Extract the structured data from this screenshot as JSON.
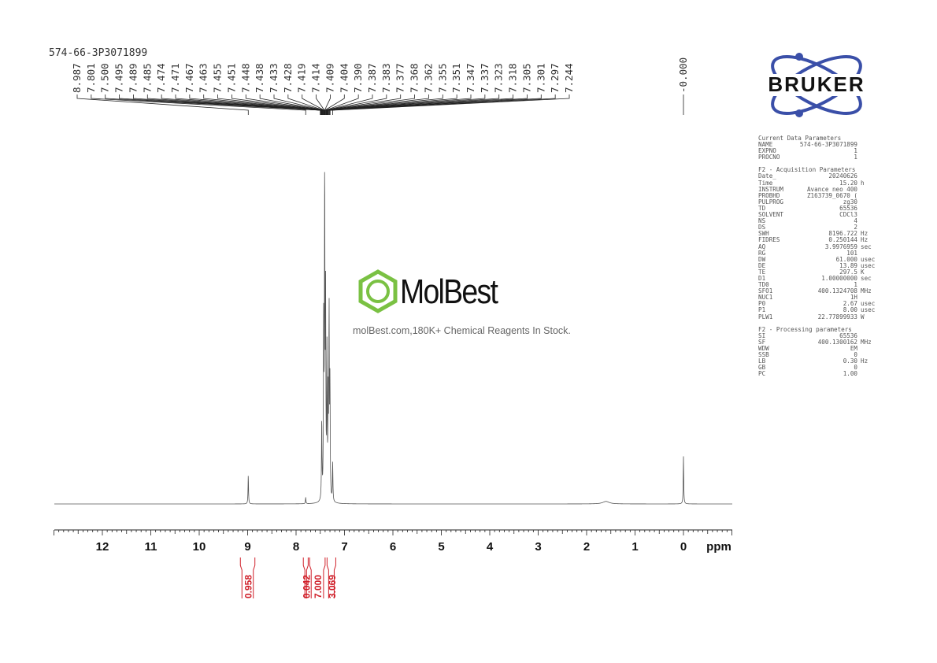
{
  "spectrum_title": "574-66-3P3071899",
  "chart_data": {
    "type": "line",
    "xlabel": "ppm",
    "xlim": [
      13,
      -1
    ],
    "x_reversed": true,
    "x_ticks": [
      12,
      11,
      10,
      9,
      8,
      7,
      6,
      5,
      4,
      3,
      2,
      1,
      0
    ],
    "peak_labels": [
      "8.987",
      "7.801",
      "7.500",
      "7.495",
      "7.489",
      "7.485",
      "7.474",
      "7.471",
      "7.467",
      "7.463",
      "7.455",
      "7.451",
      "7.448",
      "7.438",
      "7.433",
      "7.428",
      "7.419",
      "7.414",
      "7.409",
      "7.404",
      "7.390",
      "7.387",
      "7.383",
      "7.377",
      "7.368",
      "7.362",
      "7.355",
      "7.351",
      "7.347",
      "7.337",
      "7.323",
      "7.318",
      "7.305",
      "7.301",
      "7.297",
      "7.244"
    ],
    "reference_peak_label": "-0.000",
    "peaks": [
      {
        "ppm": 8.987,
        "intensity": 0.09
      },
      {
        "ppm": 7.801,
        "intensity": 0.02
      },
      {
        "ppm": 7.47,
        "intensity": 0.25
      },
      {
        "ppm": 7.43,
        "intensity": 0.55
      },
      {
        "ppm": 7.409,
        "intensity": 1.0
      },
      {
        "ppm": 7.39,
        "intensity": 0.6
      },
      {
        "ppm": 7.362,
        "intensity": 0.45
      },
      {
        "ppm": 7.337,
        "intensity": 0.3
      },
      {
        "ppm": 7.318,
        "intensity": 0.58
      },
      {
        "ppm": 7.3,
        "intensity": 0.35
      },
      {
        "ppm": 7.244,
        "intensity": 0.12
      },
      {
        "ppm": 1.6,
        "intensity": 0.008
      },
      {
        "ppm": 0.0,
        "intensity": 0.15
      }
    ],
    "integrals": [
      {
        "from": 9.15,
        "to": 8.85,
        "value": "0.958"
      },
      {
        "from": 7.85,
        "to": 7.75,
        "value": "0.042"
      },
      {
        "from": 7.72,
        "to": 7.4,
        "value": "7.000"
      },
      {
        "from": 7.36,
        "to": 7.18,
        "value": "3.069"
      }
    ],
    "colors": {
      "trace": "#555555",
      "integral": "#d0202a"
    }
  },
  "watermark": {
    "name": "MolBest",
    "tagline": "molBest.com,180K+ Chemical Reagents In Stock.",
    "color": "#7ac143"
  },
  "logo": {
    "text": "BRUKER",
    "color": "#3a4fa8"
  },
  "parameters": {
    "current": {
      "title": "Current Data Parameters",
      "rows": [
        [
          "NAME",
          "574-66-3P3071899",
          ""
        ],
        [
          "EXPNO",
          "1",
          ""
        ],
        [
          "PROCNO",
          "1",
          ""
        ]
      ]
    },
    "acquisition": {
      "title": "F2 - Acquisition Parameters",
      "rows": [
        [
          "Date_",
          "20240626",
          ""
        ],
        [
          "Time",
          "15.20",
          "h"
        ],
        [
          "INSTRUM",
          "Avance neo 400",
          ""
        ],
        [
          "PROBHD",
          "Z163739_0670 (",
          ""
        ],
        [
          "PULPROG",
          "zg30",
          ""
        ],
        [
          "TD",
          "65536",
          ""
        ],
        [
          "SOLVENT",
          "CDCl3",
          ""
        ],
        [
          "NS",
          "4",
          ""
        ],
        [
          "DS",
          "2",
          ""
        ],
        [
          "SWH",
          "8196.722",
          "Hz"
        ],
        [
          "FIDRES",
          "0.250144",
          "Hz"
        ],
        [
          "AQ",
          "3.9976959",
          "sec"
        ],
        [
          "RG",
          "101",
          ""
        ],
        [
          "DW",
          "61.000",
          "usec"
        ],
        [
          "DE",
          "13.89",
          "usec"
        ],
        [
          "TE",
          "297.5",
          "K"
        ],
        [
          "D1",
          "1.00000000",
          "sec"
        ],
        [
          "TD0",
          "1",
          ""
        ],
        [
          "SFO1",
          "400.1324708",
          "MHz"
        ],
        [
          "NUC1",
          "1H",
          ""
        ],
        [
          "P0",
          "2.67",
          "usec"
        ],
        [
          "P1",
          "8.00",
          "usec"
        ],
        [
          "PLW1",
          "22.77899933",
          "W"
        ]
      ]
    },
    "processing": {
      "title": "F2 - Processing parameters",
      "rows": [
        [
          "SI",
          "65536",
          ""
        ],
        [
          "SF",
          "400.1300162",
          "MHz"
        ],
        [
          "WDW",
          "EM",
          ""
        ],
        [
          "SSB",
          "0",
          ""
        ],
        [
          "LB",
          "0.30",
          "Hz"
        ],
        [
          "GB",
          "0",
          ""
        ],
        [
          "PC",
          "1.00",
          ""
        ]
      ]
    }
  }
}
